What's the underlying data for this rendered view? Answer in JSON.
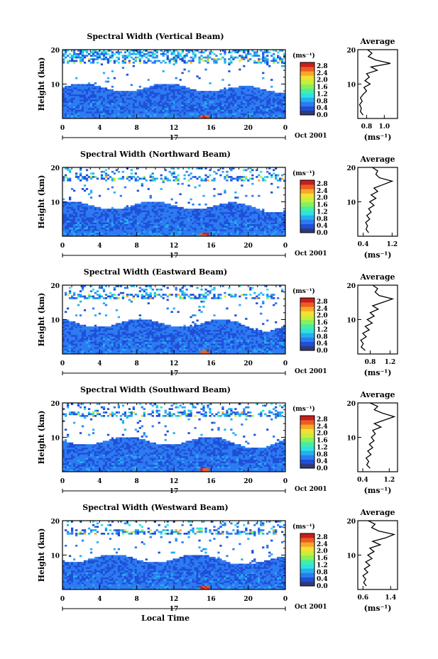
{
  "chart_data": [
    {
      "type": "heatmap",
      "title": "Spectral Width (Vertical Beam)",
      "xlabel": "",
      "ylabel": "Height (km)",
      "xlim": [
        0,
        24
      ],
      "ylim": [
        0,
        20
      ],
      "xticks": [
        "0",
        "4",
        "8",
        "12",
        "16",
        "20",
        "0"
      ],
      "yticks": [
        "20",
        "10"
      ],
      "day_label": "17",
      "date_label": "Oct 2001",
      "colorbar": {
        "unit": "(ms⁻¹)",
        "ticks": [
          "2.8",
          "2.4",
          "2.0",
          "1.6",
          "1.2",
          "0.8",
          "0.4",
          "0.0"
        ]
      },
      "average": {
        "title": "Average",
        "xlabel": "(ms⁻¹)",
        "xticks": [
          "0.8",
          "1.0"
        ],
        "xlim": [
          0.7,
          1.15
        ],
        "height": [
          1,
          2,
          3,
          4,
          5,
          6,
          7,
          8,
          9,
          10,
          11,
          12,
          13,
          14,
          15,
          16,
          17,
          18,
          19,
          20
        ],
        "width": [
          0.76,
          0.73,
          0.74,
          0.72,
          0.75,
          0.73,
          0.76,
          0.8,
          0.77,
          0.84,
          0.78,
          0.83,
          0.8,
          0.92,
          0.85,
          1.07,
          0.9,
          0.82,
          0.86,
          0.81
        ]
      }
    },
    {
      "type": "heatmap",
      "title": "Spectral Width (Northward Beam)",
      "xlabel": "",
      "ylabel": "Height (km)",
      "xlim": [
        0,
        24
      ],
      "ylim": [
        0,
        20
      ],
      "xticks": [
        "0",
        "4",
        "8",
        "12",
        "16",
        "20",
        "0"
      ],
      "yticks": [
        "20",
        "10"
      ],
      "day_label": "17",
      "date_label": "Oct 2001",
      "colorbar": {
        "unit": "(ms⁻¹)",
        "ticks": [
          "2.8",
          "2.4",
          "2.0",
          "1.6",
          "1.2",
          "0.8",
          "0.4",
          "0.0"
        ]
      },
      "average": {
        "title": "Average",
        "xlabel": "(ms⁻¹)",
        "xticks": [
          "0.4",
          "1.2"
        ],
        "xlim": [
          0.25,
          1.35
        ],
        "height": [
          1,
          2,
          3,
          4,
          5,
          6,
          7,
          8,
          9,
          10,
          11,
          12,
          13,
          14,
          15,
          16,
          17,
          18,
          19,
          20
        ],
        "width": [
          0.55,
          0.48,
          0.52,
          0.47,
          0.58,
          0.5,
          0.62,
          0.55,
          0.7,
          0.58,
          0.75,
          0.62,
          0.8,
          0.7,
          0.95,
          1.2,
          0.85,
          0.75,
          0.8,
          0.65
        ]
      }
    },
    {
      "type": "heatmap",
      "title": "Spectral Width (Eastward Beam)",
      "xlabel": "",
      "ylabel": "Height (km)",
      "xlim": [
        0,
        24
      ],
      "ylim": [
        0,
        20
      ],
      "xticks": [
        "0",
        "4",
        "8",
        "12",
        "16",
        "20",
        "0"
      ],
      "yticks": [
        "20",
        "10"
      ],
      "day_label": "17",
      "date_label": "Oct 2001",
      "colorbar": {
        "unit": "(ms⁻¹)",
        "ticks": [
          "2.8",
          "2.4",
          "2.0",
          "1.6",
          "1.2",
          "0.8",
          "0.4",
          "0.0"
        ]
      },
      "average": {
        "title": "Average",
        "xlabel": "(ms⁻¹)",
        "xticks": [
          "0.8",
          "1.2"
        ],
        "xlim": [
          0.55,
          1.35
        ],
        "height": [
          1,
          2,
          3,
          4,
          5,
          6,
          7,
          8,
          9,
          10,
          11,
          12,
          13,
          14,
          15,
          16,
          17,
          18,
          19,
          20
        ],
        "width": [
          0.7,
          0.62,
          0.66,
          0.61,
          0.72,
          0.65,
          0.78,
          0.7,
          0.84,
          0.74,
          0.88,
          0.8,
          0.96,
          0.85,
          1.05,
          1.25,
          0.98,
          0.9,
          0.95,
          0.85
        ]
      }
    },
    {
      "type": "heatmap",
      "title": "Spectral Width (Southward Beam)",
      "xlabel": "",
      "ylabel": "Height (km)",
      "xlim": [
        0,
        24
      ],
      "ylim": [
        0,
        20
      ],
      "xticks": [
        "0",
        "4",
        "8",
        "12",
        "16",
        "20",
        "0"
      ],
      "yticks": [
        "20",
        "10"
      ],
      "day_label": "17",
      "date_label": "Oct 2001",
      "colorbar": {
        "unit": "(ms⁻¹)",
        "ticks": [
          "2.8",
          "2.4",
          "2.0",
          "1.6",
          "1.2",
          "0.8",
          "0.4",
          "0.0"
        ]
      },
      "average": {
        "title": "Average",
        "xlabel": "(ms⁻¹)",
        "xticks": [
          "0.4",
          "1.2"
        ],
        "xlim": [
          0.25,
          1.45
        ],
        "height": [
          1,
          2,
          3,
          4,
          5,
          6,
          7,
          8,
          9,
          10,
          11,
          12,
          13,
          14,
          15,
          16,
          17,
          18,
          19,
          20
        ],
        "width": [
          0.62,
          0.52,
          0.58,
          0.5,
          0.65,
          0.55,
          0.7,
          0.6,
          0.74,
          0.66,
          0.78,
          0.7,
          0.95,
          0.75,
          1.05,
          1.35,
          1.0,
          0.75,
          0.85,
          0.62
        ]
      }
    },
    {
      "type": "heatmap",
      "title": "Spectral Width (Westward Beam)",
      "xlabel": "Local Time",
      "ylabel": "Height (km)",
      "xlim": [
        0,
        24
      ],
      "ylim": [
        0,
        20
      ],
      "xticks": [
        "0",
        "4",
        "8",
        "12",
        "16",
        "20",
        "0"
      ],
      "yticks": [
        "20",
        "10"
      ],
      "day_label": "17",
      "date_label": "Oct 2001",
      "colorbar": {
        "unit": "(ms⁻¹)",
        "ticks": [
          "2.8",
          "2.4",
          "2.0",
          "1.6",
          "1.2",
          "0.8",
          "0.4",
          "0.0"
        ]
      },
      "average": {
        "title": "Average",
        "xlabel": "(ms⁻¹)",
        "xticks": [
          "0.6",
          "1.4"
        ],
        "xlim": [
          0.45,
          1.6
        ],
        "height": [
          1,
          2,
          3,
          4,
          5,
          6,
          7,
          8,
          9,
          10,
          11,
          12,
          13,
          14,
          15,
          16,
          17,
          18,
          19,
          20
        ],
        "width": [
          0.7,
          0.62,
          0.68,
          0.6,
          0.74,
          0.64,
          0.8,
          0.68,
          0.86,
          0.74,
          0.92,
          0.8,
          1.1,
          0.88,
          1.25,
          1.5,
          1.05,
          0.85,
          0.95,
          0.75
        ]
      }
    }
  ],
  "colors": {
    "colormap": [
      "#303a78",
      "#1e4fd8",
      "#2c7bf2",
      "#24b0f0",
      "#2ee2e2",
      "#46eea2",
      "#88f05a",
      "#c8ee3a",
      "#f4e030",
      "#f8a828",
      "#f05c20",
      "#c81e1e"
    ],
    "masked": "#ffffff",
    "axis": "#000000"
  }
}
